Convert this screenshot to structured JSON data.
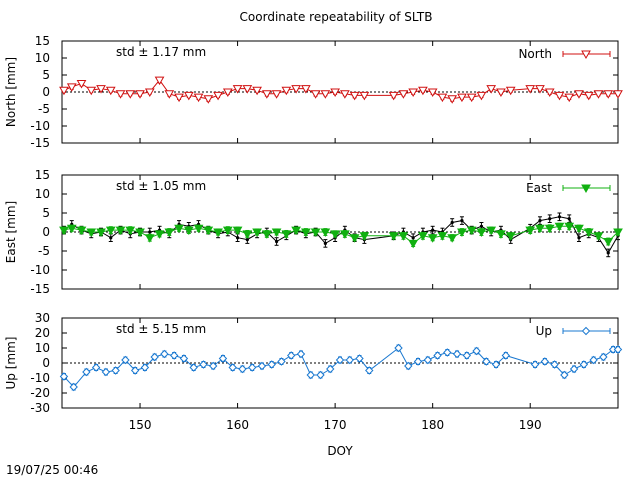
{
  "page": {
    "title": "Coordinate repeatability of SLTB",
    "timestamp": "19/07/25 00:46"
  },
  "colors": {
    "north": "#d01010",
    "east": "#10b010",
    "up": "#1a78d0",
    "reference": "#000000"
  },
  "chart_data": [
    {
      "type": "line",
      "component": "north",
      "title": "Coordinate repeatability of SLTB",
      "ylabel": "North [mm]",
      "xlabel": "",
      "xlim": [
        142,
        199
      ],
      "ylim": [
        -15,
        15
      ],
      "yticks": [
        "15",
        "10",
        "5",
        "0",
        "-5",
        "-10",
        "-15"
      ],
      "ytick_values": [
        15,
        10,
        5,
        0,
        -5,
        -10,
        -15
      ],
      "legend": "North",
      "std_label": "std ± 1.17 mm",
      "series": [
        {
          "name": "North",
          "marker": "triangle-down-open",
          "x": [
            142.2,
            143,
            144,
            145,
            146,
            147,
            148,
            149,
            150,
            151,
            152,
            153,
            154,
            155,
            156,
            157,
            158,
            159,
            160,
            161,
            162,
            163,
            164,
            165,
            166,
            167,
            168,
            169,
            170,
            171,
            172,
            173,
            176,
            177,
            178,
            179,
            180,
            181,
            182,
            183,
            184,
            185,
            186,
            187,
            188,
            190,
            191,
            192,
            193,
            194,
            195,
            196,
            197,
            198,
            199
          ],
          "y": [
            0.5,
            1.5,
            2.5,
            0.5,
            1,
            0.5,
            -0.5,
            -0.5,
            -0.5,
            0,
            3.5,
            -0.5,
            -1.5,
            -1,
            -1.5,
            -2,
            -1,
            0,
            1,
            1,
            0.5,
            -0.5,
            -0.5,
            0.5,
            1,
            1,
            -0.5,
            -0.5,
            0,
            -0.5,
            -1,
            -1,
            -1,
            -0.5,
            0,
            0.5,
            0,
            -1.5,
            -2,
            -1.5,
            -1.5,
            -1,
            1,
            0,
            0.5,
            1,
            1,
            0,
            -1,
            -1.5,
            -0.5,
            -1,
            -0.5,
            -0.5,
            -0.5
          ],
          "err": [
            0.6,
            0.7,
            0.7,
            0.6,
            0.7,
            0.6,
            0.7,
            0.6,
            0.7,
            0.6,
            0.8,
            0.7,
            0.7,
            0.6,
            0.7,
            0.7,
            0.6,
            0.7,
            0.6,
            0.7,
            0.6,
            0.7,
            0.6,
            0.7,
            0.6,
            0.7,
            0.7,
            0.6,
            0.7,
            0.6,
            0.7,
            0.6,
            0.7,
            0.6,
            0.7,
            0.6,
            0.7,
            0.6,
            0.7,
            0.6,
            0.7,
            0.6,
            0.7,
            0.6,
            0.6,
            0.7,
            0.6,
            0.7,
            0.6,
            0.7,
            0.6,
            0.7,
            0.6,
            0.7,
            0.6
          ]
        }
      ]
    },
    {
      "type": "line",
      "component": "east",
      "ylabel": "East [mm]",
      "xlabel": "",
      "xlim": [
        142,
        199
      ],
      "ylim": [
        -15,
        15
      ],
      "yticks": [
        "15",
        "10",
        "5",
        "0",
        "-5",
        "-10",
        "-15"
      ],
      "ytick_values": [
        15,
        10,
        5,
        0,
        -5,
        -10,
        -15
      ],
      "legend": "East",
      "std_label": "std ± 1.05 mm",
      "series": [
        {
          "name": "East",
          "marker": "triangle-down-filled",
          "x": [
            142.2,
            143,
            144,
            145,
            146,
            147,
            148,
            149,
            150,
            151,
            152,
            153,
            154,
            155,
            156,
            157,
            158,
            159,
            160,
            161,
            162,
            163,
            164,
            165,
            166,
            167,
            168,
            169,
            170,
            171,
            172,
            173,
            176,
            177,
            178,
            179,
            180,
            181,
            182,
            183,
            184,
            185,
            186,
            187,
            188,
            190,
            191,
            192,
            193,
            194,
            195,
            196,
            197,
            198,
            199
          ],
          "y": [
            0.5,
            1,
            0.5,
            0,
            0,
            0.5,
            0.5,
            0.5,
            0,
            -1.5,
            -0.5,
            0,
            1,
            0.5,
            1,
            0.5,
            0,
            0.5,
            0.5,
            -0.5,
            0,
            -0.5,
            0,
            -0.5,
            0.5,
            0,
            0,
            0,
            -0.5,
            -0.5,
            -1.5,
            -1,
            -1,
            -1,
            -3,
            -1,
            -1.5,
            -1,
            -1.5,
            0,
            0.5,
            0,
            0.5,
            -0.5,
            -1,
            0.5,
            1,
            1,
            1.5,
            1.5,
            1,
            0,
            -1,
            -2.5,
            0
          ],
          "err": [
            0.8,
            0.8,
            0.9,
            0.8,
            0.8,
            0.9,
            0.8,
            0.9,
            0.8,
            0.9,
            0.8,
            0.9,
            0.8,
            0.9,
            0.8,
            0.9,
            0.8,
            0.9,
            0.8,
            0.9,
            0.8,
            0.9,
            0.8,
            0.9,
            0.8,
            0.9,
            0.8,
            0.9,
            0.8,
            0.9,
            0.8,
            0.9,
            0.8,
            0.9,
            0.8,
            0.9,
            0.8,
            0.9,
            0.8,
            0.9,
            0.8,
            0.9,
            0.8,
            0.9,
            0.8,
            0.9,
            0.8,
            0.9,
            0.8,
            0.9,
            0.8,
            0.9,
            0.8,
            0.9,
            0.8
          ]
        },
        {
          "name": "East (reference)",
          "marker": "dot",
          "x": [
            142.2,
            143,
            144,
            145,
            146,
            147,
            148,
            149,
            150,
            151,
            152,
            153,
            154,
            155,
            156,
            157,
            158,
            159,
            160,
            161,
            162,
            163,
            164,
            165,
            166,
            167,
            168,
            169,
            170,
            171,
            172,
            173,
            176,
            177,
            178,
            179,
            180,
            181,
            182,
            183,
            184,
            185,
            186,
            187,
            188,
            190,
            191,
            192,
            193,
            194,
            195,
            196,
            197,
            198,
            199
          ],
          "y": [
            0.5,
            2,
            0.5,
            -0.5,
            0,
            -1.5,
            0.5,
            -0.5,
            0,
            0,
            0.5,
            -0.5,
            2,
            1.5,
            2,
            0.5,
            -0.5,
            0,
            -1.5,
            -2,
            -0.5,
            0,
            -2.5,
            -1,
            0.5,
            -0.5,
            0,
            -3,
            -1.5,
            0.5,
            -1.5,
            -2,
            -1,
            0,
            -1.5,
            0,
            0.5,
            0,
            2.5,
            3,
            0.5,
            1.5,
            0,
            0.5,
            -2,
            1,
            3,
            3.5,
            4,
            3.5,
            -1.5,
            -0.5,
            -1.5,
            -5.5,
            -1
          ]
        }
      ]
    },
    {
      "type": "line",
      "component": "up",
      "ylabel": "Up [mm]",
      "xlabel": "DOY",
      "xlim": [
        142,
        199
      ],
      "ylim": [
        -30,
        30
      ],
      "yticks": [
        "30",
        "20",
        "10",
        "0",
        "-10",
        "-20",
        "-30"
      ],
      "ytick_values": [
        30,
        20,
        10,
        0,
        -10,
        -20,
        -30
      ],
      "xticks": [
        "150",
        "160",
        "170",
        "180",
        "190"
      ],
      "xtick_values": [
        150,
        160,
        170,
        180,
        190
      ],
      "legend": "Up",
      "std_label": "std ± 5.15 mm",
      "series": [
        {
          "name": "Up",
          "marker": "diamond-open",
          "x": [
            142.2,
            143.2,
            144.5,
            145.5,
            146.5,
            147.5,
            148.5,
            149.5,
            150.5,
            151.5,
            152.5,
            153.5,
            154.5,
            155.5,
            156.5,
            157.5,
            158.5,
            159.5,
            160.5,
            161.5,
            162.5,
            163.5,
            164.5,
            165.5,
            166.5,
            167.5,
            168.5,
            169.5,
            170.5,
            171.5,
            172.5,
            173.5,
            176.5,
            177.5,
            178.5,
            179.5,
            180.5,
            181.5,
            182.5,
            183.5,
            184.5,
            185.5,
            186.5,
            187.5,
            190.5,
            191.5,
            192.5,
            193.5,
            194.5,
            195.5,
            196.5,
            197.5,
            198.5,
            199
          ],
          "y": [
            -9,
            -16,
            -6,
            -3,
            -6,
            -5,
            2,
            -5,
            -3,
            4,
            6,
            5,
            3,
            -3,
            -1,
            -2,
            3,
            -3,
            -4,
            -3,
            -2,
            -1,
            1,
            5,
            6,
            -8,
            -8,
            -4,
            2,
            2,
            3,
            -5,
            10,
            -2,
            1,
            2,
            5,
            7,
            6,
            5,
            8,
            1,
            -1,
            5,
            -1,
            1,
            -1,
            -8,
            -4,
            -1,
            2,
            4,
            9,
            9
          ],
          "err": [
            2,
            2,
            2,
            2,
            2,
            2,
            2,
            2,
            2,
            2,
            2,
            2,
            2,
            2,
            2,
            2,
            2,
            2,
            2,
            2,
            2,
            2,
            2,
            2,
            2,
            2,
            2,
            2,
            2,
            2,
            2,
            2,
            2,
            2,
            2,
            2,
            2,
            2,
            2,
            2,
            2,
            2,
            2,
            2,
            2,
            2,
            2,
            2,
            2,
            2,
            2,
            2,
            2,
            2
          ]
        }
      ]
    }
  ]
}
